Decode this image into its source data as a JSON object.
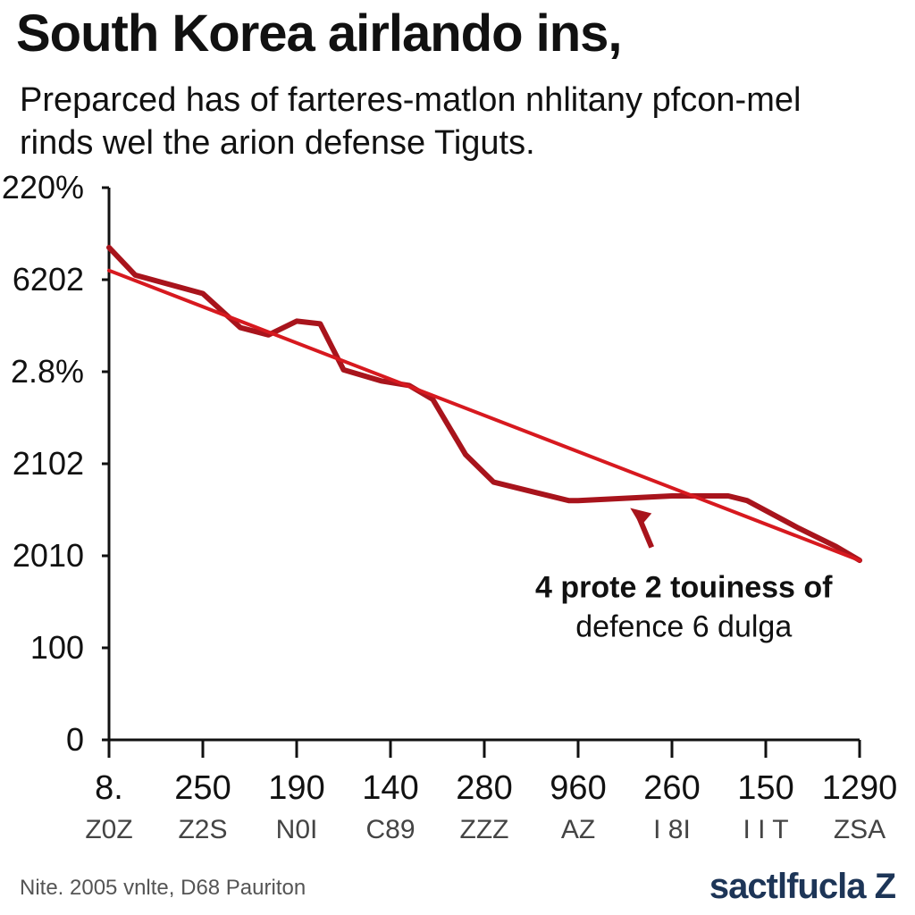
{
  "chart_data": {
    "type": "line",
    "title": "South Korea airlando ins,",
    "subtitle": "Preparced has of farteres-matlon nhlitany pfcon-mel rinds wel the arion defense Tiguts.",
    "y_tick_labels": [
      "0",
      "100",
      "2010",
      "2102",
      "2.8%",
      "6202",
      "220%"
    ],
    "x_tick_labels": [
      "8.",
      "250",
      "190",
      "140",
      "280",
      "960",
      "260",
      "150",
      "1290"
    ],
    "x_sub_labels": [
      "Z0Z",
      "Z2S",
      "N0I",
      "C89",
      "ZZZ",
      "AZ",
      "I 8I",
      "I I T",
      "ZSA"
    ],
    "x_range": [
      0,
      8
    ],
    "y_range": [
      0,
      6
    ],
    "series": [
      {
        "color": "#a8141c",
        "x": [
          0,
          0.28,
          1.0,
          1.4,
          1.7,
          2.0,
          2.25,
          2.5,
          2.9,
          3.2,
          3.45,
          3.8,
          4.1,
          4.5,
          4.9,
          5.0,
          6.0,
          6.6,
          6.8,
          7.35,
          7.75,
          8.0
        ],
        "y": [
          5.35,
          5.05,
          4.85,
          4.48,
          4.4,
          4.55,
          4.52,
          4.02,
          3.9,
          3.85,
          3.7,
          3.1,
          2.8,
          2.7,
          2.6,
          2.6,
          2.65,
          2.65,
          2.6,
          2.3,
          2.1,
          1.95
        ]
      },
      {
        "color": "#d7191f",
        "x": [
          0,
          8
        ],
        "y": [
          5.1,
          1.95
        ]
      }
    ],
    "annotation": {
      "line1": "4 prote 2 touiness of",
      "line2": "defence 6 dulga",
      "x": 5.65,
      "y": 2.5
    }
  },
  "footnote": "Nite. 2005 vnlte, D68 Pauriton",
  "logo": "sactlfucla Z"
}
